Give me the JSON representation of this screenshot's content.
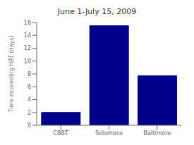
{
  "chart_data": {
    "type": "bar",
    "title": "June 1-July 15, 2009",
    "ylabel": "Time exceeding HAT (days)",
    "categories": [
      "CBBT",
      "Solomons",
      "Baltimore"
    ],
    "values": [
      2,
      15.5,
      7.7
    ],
    "color": "#00008B",
    "ylim": [
      0,
      16
    ],
    "yticks": [
      0,
      2,
      4,
      6,
      8,
      10,
      12,
      14,
      16
    ],
    "grid": false
  }
}
